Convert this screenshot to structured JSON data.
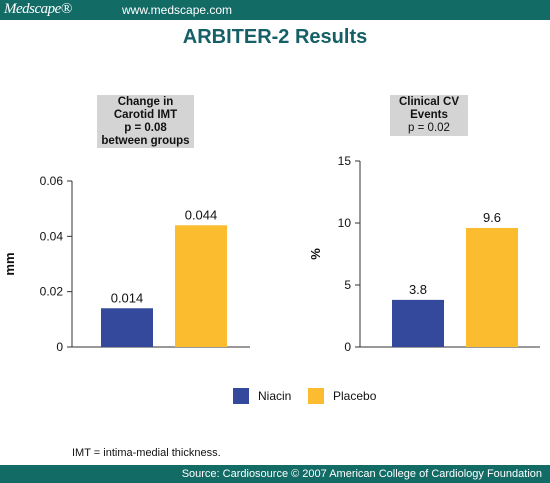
{
  "header": {
    "logo": "Medscape®",
    "url": "www.medscape.com"
  },
  "title": "ARBITER-2 Results",
  "colors": {
    "niacin": "#34499c",
    "placebo": "#fbbc30",
    "brand": "#136b66"
  },
  "chart_data": [
    {
      "type": "bar",
      "panel_label": [
        "Change in",
        "Carotid IMT",
        "p = 0.08",
        "between groups"
      ],
      "categories": [
        "Niacin",
        "Placebo"
      ],
      "values": [
        0.014,
        0.044
      ],
      "value_labels": [
        "0.014",
        "0.044"
      ],
      "ylabel": "mm",
      "ylim": [
        0,
        0.06
      ],
      "yticks": [
        "0",
        "0.02",
        "0.04",
        "0.06"
      ],
      "ytick_values": [
        0,
        0.02,
        0.04,
        0.06
      ]
    },
    {
      "type": "bar",
      "panel_label": [
        "Clinical CV",
        "Events",
        "p = 0.02"
      ],
      "categories": [
        "Niacin",
        "Placebo"
      ],
      "values": [
        3.8,
        9.6
      ],
      "value_labels": [
        "3.8",
        "9.6"
      ],
      "ylabel": "%",
      "ylim": [
        0,
        15
      ],
      "yticks": [
        "0",
        "5",
        "10",
        "15"
      ],
      "ytick_values": [
        0,
        5,
        10,
        15
      ]
    }
  ],
  "legend": [
    {
      "label": "Niacin"
    },
    {
      "label": "Placebo"
    }
  ],
  "footnote": "IMT = intima-medial thickness.",
  "footer": "Source: Cardiosource  © 2007 American College of Cardiology Foundation"
}
